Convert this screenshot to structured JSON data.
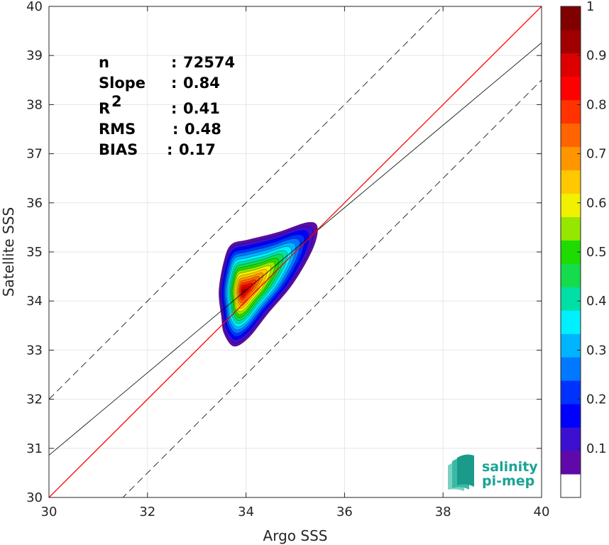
{
  "chart_data": {
    "type": "scatter",
    "title": "",
    "xlabel": "Argo SSS",
    "ylabel": "Satellite SSS",
    "xlim": [
      30,
      40
    ],
    "ylim": [
      30,
      40
    ],
    "xticks": [
      "30",
      "32",
      "34",
      "36",
      "38",
      "40"
    ],
    "yticks": [
      "30",
      "31",
      "32",
      "33",
      "34",
      "35",
      "36",
      "37",
      "38",
      "39",
      "40"
    ],
    "grid": true,
    "stats": [
      {
        "label": "n",
        "sep": ": ",
        "value": "72574"
      },
      {
        "label": "Slope",
        "sep": ": ",
        "value": "0.84"
      },
      {
        "label": "R",
        "sup": "2",
        "sep": ": ",
        "value": "0.41"
      },
      {
        "label": "RMS",
        "sep": ": ",
        "value": "0.48"
      },
      {
        "label": "BIAS",
        "sep": ": ",
        "value": "0.17"
      }
    ],
    "lines": {
      "identity": {
        "x": [
          30,
          40
        ],
        "y": [
          30,
          40
        ],
        "color": "#ff0000"
      },
      "regression": {
        "x": [
          30,
          40
        ],
        "y": [
          30.86,
          39.26
        ],
        "color": "#000000"
      },
      "upper_bound": {
        "x": [
          30,
          40
        ],
        "y": [
          32.0,
          42.0
        ],
        "color": "#000000",
        "style": "dashed"
      },
      "lower_bound": {
        "x": [
          30,
          40
        ],
        "y": [
          28.5,
          38.5
        ],
        "color": "#000000",
        "style": "dashed"
      }
    },
    "density_contours": {
      "peak": [
        33.95,
        34.2
      ],
      "normalized": true,
      "outer_extent_x": [
        33.55,
        35.45
      ],
      "outer_extent_y": [
        33.08,
        35.6
      ]
    },
    "colorbar": {
      "range": [
        0,
        1
      ],
      "ticks": [
        "0.1",
        "0.2",
        "0.3",
        "0.4",
        "0.5",
        "0.6",
        "0.7",
        "0.8",
        "0.9",
        "1"
      ],
      "colors": [
        "#ffffff",
        "#5f0aa8",
        "#3b10d0",
        "#0000ff",
        "#0032ff",
        "#0078ff",
        "#00b4ff",
        "#00f0ff",
        "#00e0a6",
        "#14dc4c",
        "#1edc00",
        "#96e600",
        "#f0f000",
        "#ffc800",
        "#ff9600",
        "#ff6400",
        "#ff3200",
        "#ff0000",
        "#dc0000",
        "#a00000",
        "#800000"
      ]
    }
  },
  "logo": {
    "line1": "salinity",
    "line2": "pi-mep"
  }
}
